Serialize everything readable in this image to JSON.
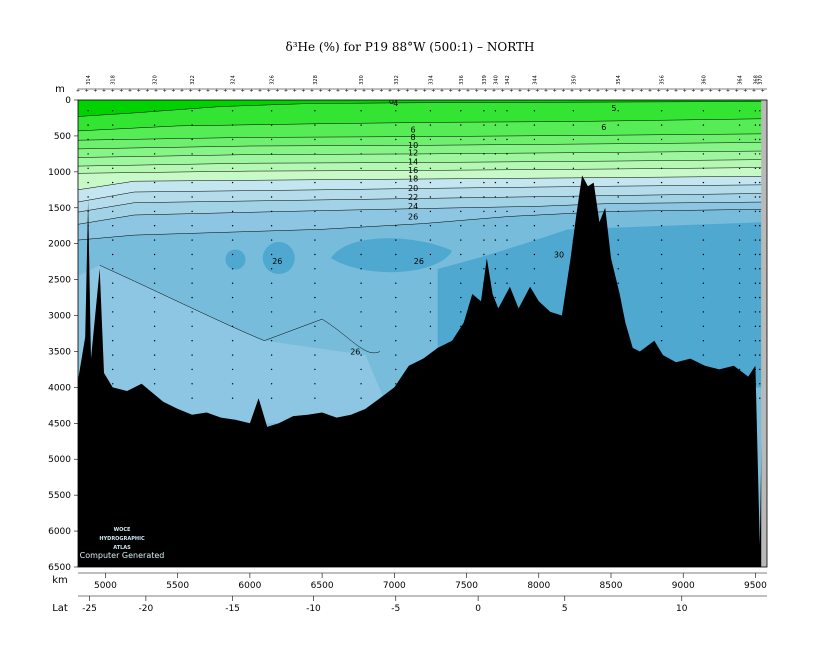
{
  "chart_data": {
    "type": "contour",
    "title": "δ³He (%) for P19 88°W (500:1) – NORTH",
    "ylabel": "m",
    "xlabel": "km",
    "x2label": "Lat",
    "xlim": [
      4810,
      9580
    ],
    "ylim": [
      6500,
      0
    ],
    "x_ticks": [
      5000,
      5500,
      6000,
      6500,
      7000,
      7500,
      8000,
      8500,
      9000,
      9500
    ],
    "y_ticks": [
      0,
      500,
      1000,
      1500,
      2000,
      2500,
      3000,
      3500,
      4000,
      4500,
      5000,
      5500,
      6000,
      6500
    ],
    "lat_ticks": [
      {
        "km": 4890,
        "label": "-25"
      },
      {
        "km": 5280,
        "label": "-20"
      },
      {
        "km": 5880,
        "label": "-15"
      },
      {
        "km": 6440,
        "label": "-10"
      },
      {
        "km": 7010,
        "label": "-5"
      },
      {
        "km": 7580,
        "label": "0"
      },
      {
        "km": 8180,
        "label": "5"
      },
      {
        "km": 8990,
        "label": "10"
      }
    ],
    "stations": [
      {
        "km": 4880,
        "label": "314"
      },
      {
        "km": 5050,
        "label": "318"
      },
      {
        "km": 5340,
        "label": "320"
      },
      {
        "km": 5600,
        "label": "322"
      },
      {
        "km": 5880,
        "label": "324"
      },
      {
        "km": 6150,
        "label": "326"
      },
      {
        "km": 6450,
        "label": "328"
      },
      {
        "km": 6770,
        "label": "330"
      },
      {
        "km": 7010,
        "label": "332"
      },
      {
        "km": 7250,
        "label": "334"
      },
      {
        "km": 7460,
        "label": "336"
      },
      {
        "km": 7620,
        "label": "339"
      },
      {
        "km": 7700,
        "label": "340"
      },
      {
        "km": 7780,
        "label": "342"
      },
      {
        "km": 7970,
        "label": "344"
      },
      {
        "km": 8240,
        "label": "350"
      },
      {
        "km": 8550,
        "label": "354"
      },
      {
        "km": 8850,
        "label": "356"
      },
      {
        "km": 9140,
        "label": "360"
      },
      {
        "km": 9390,
        "label": "364"
      },
      {
        "km": 9500,
        "label": "368"
      },
      {
        "km": 9530,
        "label": "370"
      }
    ],
    "levels": [
      0,
      4,
      6,
      8,
      10,
      12,
      14,
      16,
      18,
      20,
      22,
      24,
      26,
      28,
      30
    ],
    "contour_labels": [
      {
        "text": "0",
        "km": 6980,
        "depth": 20
      },
      {
        "text": "4",
        "km": 7010,
        "depth": 50
      },
      {
        "text": "5",
        "km": 8520,
        "depth": 120
      },
      {
        "text": "6",
        "km": 8450,
        "depth": 380
      },
      {
        "text": "6",
        "km": 7130,
        "depth": 420
      },
      {
        "text": "8",
        "km": 7130,
        "depth": 520
      },
      {
        "text": "10",
        "km": 7130,
        "depth": 630
      },
      {
        "text": "12",
        "km": 7130,
        "depth": 740
      },
      {
        "text": "14",
        "km": 7130,
        "depth": 860
      },
      {
        "text": "16",
        "km": 7130,
        "depth": 980
      },
      {
        "text": "18",
        "km": 7130,
        "depth": 1100
      },
      {
        "text": "20",
        "km": 7130,
        "depth": 1230
      },
      {
        "text": "22",
        "km": 7130,
        "depth": 1360
      },
      {
        "text": "24",
        "km": 7130,
        "depth": 1480
      },
      {
        "text": "26",
        "km": 7130,
        "depth": 1630
      },
      {
        "text": "26",
        "km": 6190,
        "depth": 2250
      },
      {
        "text": "26",
        "km": 7170,
        "depth": 2250
      },
      {
        "text": "26",
        "km": 6730,
        "depth": 3510
      },
      {
        "text": "30",
        "km": 8140,
        "depth": 2160
      }
    ],
    "colors": {
      "lt4": "#00d200",
      "4-6": "#33e433",
      "6-8": "#55ec55",
      "8-10": "#6ef06e",
      "10-12": "#86f486",
      "12-14": "#9ef69e",
      "14-16": "#b4f8b4",
      "16-18": "#c8fac8",
      "18-20": "#c4e6f0",
      "20-22": "#b4dcea",
      "22-24": "#a2d2e6",
      "24-26": "#8cc6e2",
      "26-28": "#78bcdc",
      "28-30": "#4fa8d0",
      "gt30": "#3b9cca",
      "topography": "#000000"
    },
    "watermark_lines": [
      "WOCE",
      "HYDROGRAPHIC",
      "ATLAS"
    ],
    "watermark_footer": "Computer Generated"
  }
}
